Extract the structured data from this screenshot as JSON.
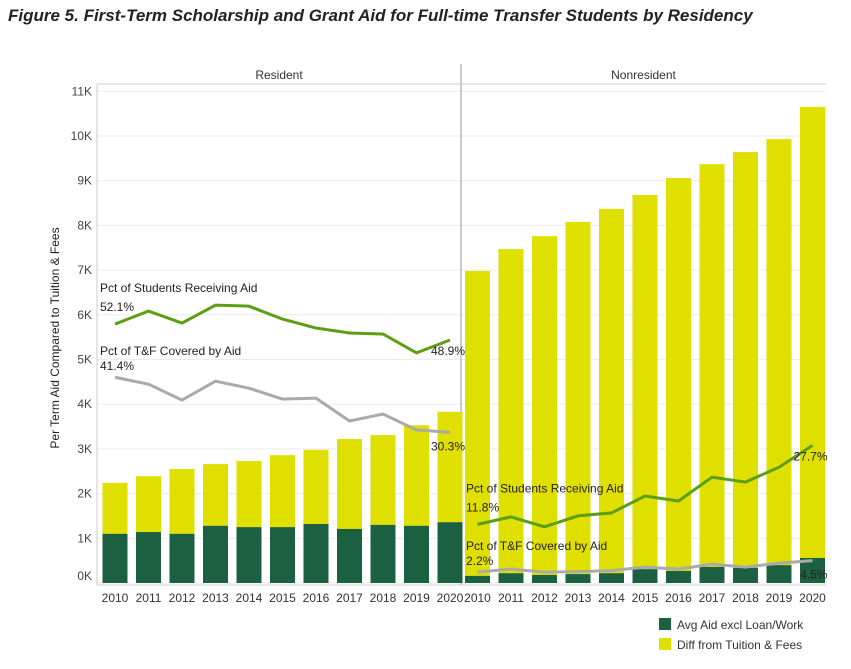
{
  "chart_data": {
    "type": "bar",
    "title": "Figure 5. First-Term Scholarship and Grant Aid for Full-time Transfer Students by Residency",
    "ylabel": "Per Term Aid Compared to Tuition & Fees",
    "xlabel": "",
    "ylim": [
      0,
      11000
    ],
    "yticks": [
      "0K",
      "1K",
      "2K",
      "3K",
      "4K",
      "5K",
      "6K",
      "7K",
      "8K",
      "9K",
      "10K",
      "11K"
    ],
    "categories": [
      "2010",
      "2011",
      "2012",
      "2013",
      "2014",
      "2015",
      "2016",
      "2017",
      "2018",
      "2019",
      "2020"
    ],
    "legend": {
      "placement": "bottom-right",
      "entries": [
        "Avg Aid excl Loan/Work",
        "Diff from Tuition & Fees"
      ]
    },
    "colors": {
      "avg_aid": "#1b6040",
      "diff": "#dfdf00",
      "pct_students": "#5e9e12",
      "pct_tf": "#aaaaaa",
      "grid": "#ececec"
    },
    "panels": [
      {
        "name": "Resident",
        "avg_aid": [
          1100,
          1140,
          1100,
          1280,
          1250,
          1250,
          1320,
          1210,
          1300,
          1280,
          1360
        ],
        "total": [
          2240,
          2390,
          2550,
          2660,
          2730,
          2860,
          2980,
          3220,
          3310,
          3530,
          3830
        ],
        "pct_students_receiving_aid": [
          52.1,
          54.7,
          52.3,
          55.9,
          55.7,
          53.1,
          51.3,
          50.3,
          50.1,
          46.3,
          48.9
        ],
        "pct_tf_covered": [
          41.4,
          40.0,
          36.8,
          40.6,
          39.2,
          37.0,
          37.2,
          32.6,
          34.0,
          30.8,
          30.3
        ],
        "labels": {
          "students_title": "Pct of Students Receiving Aid",
          "students_start": "52.1%",
          "students_end": "48.9%",
          "tf_title": "Pct of T&F Covered by Aid",
          "tf_start": "41.4%",
          "tf_end": "30.3%"
        }
      },
      {
        "name": "Nonresident",
        "avg_aid": [
          160,
          220,
          180,
          200,
          220,
          310,
          270,
          360,
          340,
          400,
          560
        ],
        "total": [
          6980,
          7470,
          7760,
          8080,
          8370,
          8680,
          9060,
          9370,
          9640,
          9930,
          10650
        ],
        "pct_students_receiving_aid": [
          11.8,
          13.3,
          11.3,
          13.5,
          14.1,
          17.5,
          16.5,
          21.3,
          20.3,
          23.3,
          27.7
        ],
        "pct_tf_covered": [
          2.2,
          2.8,
          2.2,
          2.3,
          2.5,
          3.2,
          2.8,
          3.8,
          3.2,
          4.0,
          4.5
        ],
        "labels": {
          "students_title": "Pct of Students Receiving Aid",
          "students_start": "11.8%",
          "students_end": "27.7%",
          "tf_title": "Pct of T&F Covered by Aid",
          "tf_start": "2.2%",
          "tf_end": "4.5%"
        }
      }
    ]
  }
}
